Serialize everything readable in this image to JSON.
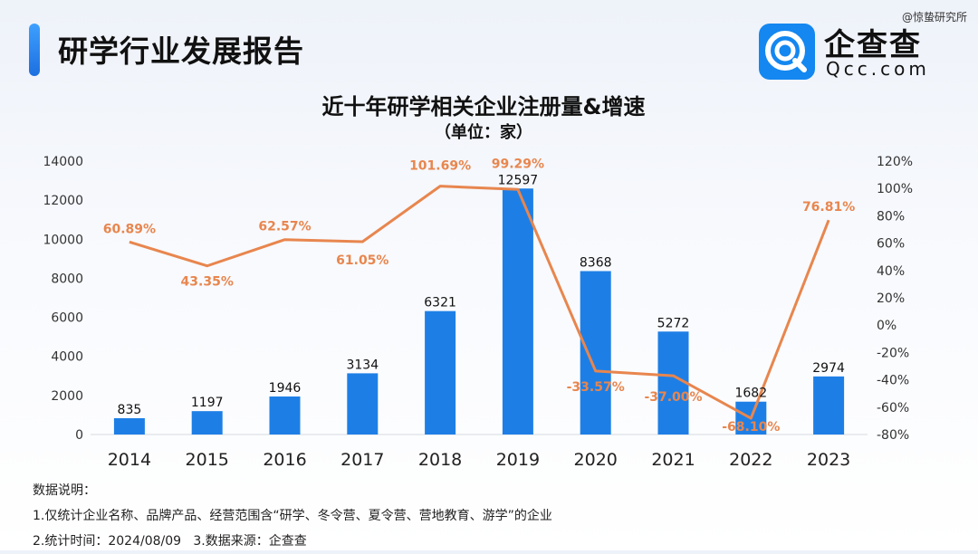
{
  "header": {
    "title": "研学行业发展报告",
    "watermark": "@惊蛰研究所",
    "logo_name": "企查查",
    "logo_sub": "Qcc.com",
    "accent_color": "#1d7fe6"
  },
  "chart_data": {
    "type": "bar",
    "title": "近十年研学相关企业注册量&增速",
    "subtitle": "（单位：家）",
    "categories": [
      "2014",
      "2015",
      "2016",
      "2017",
      "2018",
      "2019",
      "2020",
      "2021",
      "2022",
      "2023"
    ],
    "series": [
      {
        "type": "bar",
        "axis": "left",
        "color": "#1d7fe6",
        "values": [
          835,
          1197,
          1946,
          3134,
          6321,
          12597,
          8368,
          5272,
          1682,
          2974
        ],
        "labels": [
          "835",
          "1197",
          "1946",
          "3134",
          "6321",
          "12597",
          "8368",
          "5272",
          "1682",
          "2974"
        ]
      },
      {
        "type": "line",
        "axis": "right",
        "color": "#e8864e",
        "values": [
          60.89,
          43.35,
          62.57,
          61.05,
          101.69,
          99.29,
          -33.57,
          -37.0,
          -68.1,
          76.81
        ],
        "labels": [
          "60.89%",
          "43.35%",
          "62.57%",
          "61.05%",
          "101.69%",
          "99.29%",
          "-33.57%",
          "-37.00%",
          "-68.10%",
          "76.81%"
        ]
      }
    ],
    "y_left": {
      "min": 0,
      "max": 14000,
      "ticks": [
        "0",
        "2000",
        "4000",
        "6000",
        "8000",
        "10000",
        "12000",
        "14000"
      ]
    },
    "y_right": {
      "min": -80,
      "max": 120,
      "ticks": [
        "-80%",
        "-60%",
        "-40%",
        "-20%",
        "0%",
        "20%",
        "40%",
        "60%",
        "80%",
        "100%",
        "120%"
      ]
    },
    "grid": false,
    "legend": "none"
  },
  "notes": {
    "heading": "数据说明：",
    "line1": "1.仅统计企业名称、品牌产品、经营范围含“研学、冬令营、夏令营、营地教育、游学”的企业",
    "line2": "2.统计时间：2024/08/09   3.数据来源：企查查"
  }
}
